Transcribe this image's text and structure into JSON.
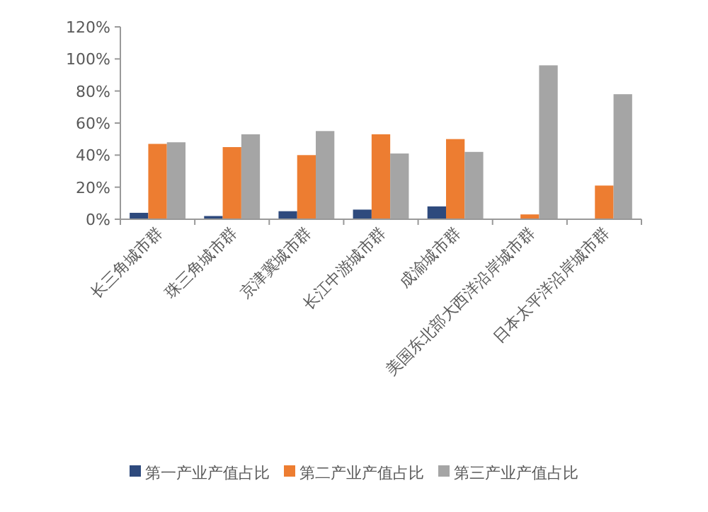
{
  "chart_data": {
    "type": "bar",
    "categories": [
      "长三角城市群",
      "珠三角城市群",
      "京津冀城市群",
      "长江中游城市群",
      "成渝城市群",
      "美国东北部大西洋沿岸城市群",
      "日本太平洋沿岸城市群"
    ],
    "series": [
      {
        "name": "第一产业产值占比",
        "color": "#2e4a7d",
        "values": [
          4,
          2,
          5,
          6,
          8,
          null,
          null
        ]
      },
      {
        "name": "第二产业产值占比",
        "color": "#ed7d31",
        "values": [
          47,
          45,
          40,
          53,
          50,
          3,
          21
        ]
      },
      {
        "name": "第三产业产值占比",
        "color": "#a5a5a5",
        "values": [
          48,
          53,
          55,
          41,
          42,
          96,
          78
        ]
      }
    ],
    "ylim": [
      0,
      120
    ],
    "yticks": [
      {
        "value": 0,
        "label": "0%"
      },
      {
        "value": 20,
        "label": "20%"
      },
      {
        "value": 40,
        "label": "40%"
      },
      {
        "value": 60,
        "label": "60%"
      },
      {
        "value": 80,
        "label": "80%"
      },
      {
        "value": 100,
        "label": "100%"
      },
      {
        "value": 120,
        "label": "120%"
      }
    ],
    "grid": false,
    "legend": "bottom"
  }
}
